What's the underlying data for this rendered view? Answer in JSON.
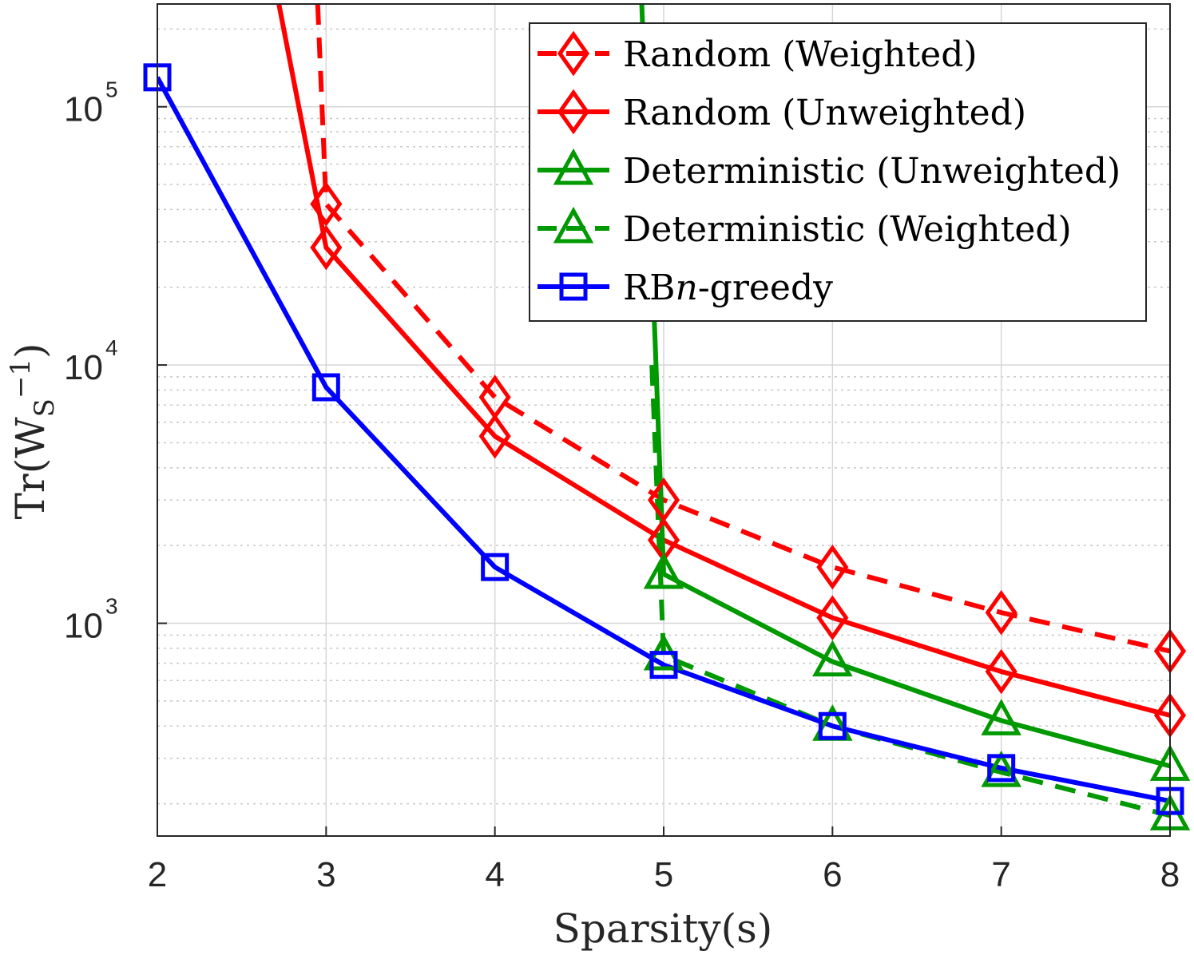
{
  "chart_data": {
    "type": "line",
    "xlabel": "Sparsity(s)",
    "ylabel": "Tr(W_S^-1)",
    "xlim": [
      2,
      8
    ],
    "ylim": [
      150,
      250000
    ],
    "yscale": "log",
    "grid": true,
    "minor_grid": true,
    "legend_position": "top-right",
    "xticks": [
      "2",
      "3",
      "4",
      "5",
      "6",
      "7",
      "8"
    ],
    "yticks": [
      {
        "value": 1000,
        "base": "10",
        "exponent": "3"
      },
      {
        "value": 10000,
        "base": "10",
        "exponent": "4"
      },
      {
        "value": 100000,
        "base": "10",
        "exponent": "5"
      }
    ],
    "series": [
      {
        "name": "Random (Weighted)",
        "color": "#ff0000",
        "dash": "dashed",
        "marker": "diamond",
        "points": [
          [
            2.95,
            250000
          ],
          [
            3,
            42000
          ],
          [
            4,
            7500
          ],
          [
            5,
            3000
          ],
          [
            6,
            1650
          ],
          [
            7,
            1100
          ],
          [
            8,
            780
          ]
        ],
        "marker_x": [
          3,
          4,
          5,
          6,
          7,
          8
        ]
      },
      {
        "name": "Random (Unweighted)",
        "color": "#ff0000",
        "dash": "solid",
        "marker": "diamond",
        "points": [
          [
            2.72,
            250000
          ],
          [
            3,
            28500
          ],
          [
            4,
            5300
          ],
          [
            5,
            2100
          ],
          [
            6,
            1050
          ],
          [
            7,
            650
          ],
          [
            8,
            440
          ]
        ],
        "marker_x": [
          3,
          4,
          5,
          6,
          7,
          8
        ]
      },
      {
        "name": "Deterministic (Unweighted)",
        "color": "#009900",
        "dash": "solid",
        "marker": "triangle",
        "points": [
          [
            4.87,
            250000
          ],
          [
            4.95,
            12000
          ],
          [
            5,
            1550
          ],
          [
            6,
            710
          ],
          [
            7,
            420
          ],
          [
            8,
            280
          ]
        ],
        "marker_x": [
          5,
          6,
          7,
          8
        ]
      },
      {
        "name": "Deterministic (Weighted)",
        "color": "#009900",
        "dash": "dashed",
        "marker": "triangle",
        "points": [
          [
            4.93,
            10000
          ],
          [
            5,
            750
          ],
          [
            6,
            400
          ],
          [
            7,
            265
          ],
          [
            8,
            180
          ]
        ],
        "marker_x": [
          5,
          6,
          7,
          8
        ]
      },
      {
        "name": "RBn-greedy",
        "color": "#0000ff",
        "dash": "solid",
        "marker": "square",
        "points": [
          [
            2,
            130000
          ],
          [
            3,
            8200
          ],
          [
            4,
            1650
          ],
          [
            5,
            690
          ],
          [
            6,
            400
          ],
          [
            7,
            275
          ],
          [
            8,
            205
          ]
        ],
        "marker_x": [
          2,
          3,
          4,
          5,
          6,
          7,
          8
        ]
      }
    ]
  }
}
